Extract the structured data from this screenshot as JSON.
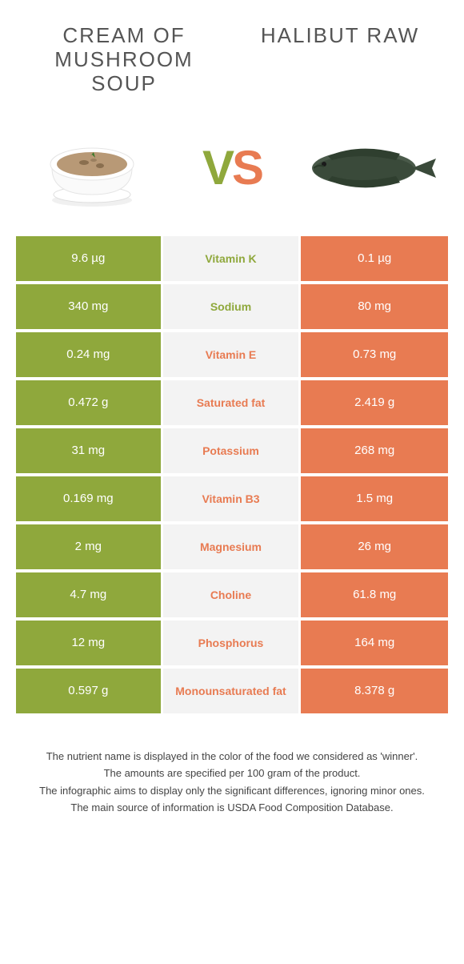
{
  "food_left": {
    "name": "Cream of Mushroom Soup",
    "color": "#8fa83c"
  },
  "food_right": {
    "name": "Halibut Raw",
    "color": "#e87b52"
  },
  "vs_label": "VS",
  "colors": {
    "left": "#8fa83c",
    "right": "#e87b52",
    "mid_bg": "#f3f3f3",
    "page_bg": "#ffffff"
  },
  "rows": [
    {
      "left": "9.6 µg",
      "nutrient": "Vitamin K",
      "right": "0.1 µg",
      "winner": "left"
    },
    {
      "left": "340 mg",
      "nutrient": "Sodium",
      "right": "80 mg",
      "winner": "left"
    },
    {
      "left": "0.24 mg",
      "nutrient": "Vitamin E",
      "right": "0.73 mg",
      "winner": "right"
    },
    {
      "left": "0.472 g",
      "nutrient": "Saturated fat",
      "right": "2.419 g",
      "winner": "right"
    },
    {
      "left": "31 mg",
      "nutrient": "Potassium",
      "right": "268 mg",
      "winner": "right"
    },
    {
      "left": "0.169 mg",
      "nutrient": "Vitamin B3",
      "right": "1.5 mg",
      "winner": "right"
    },
    {
      "left": "2 mg",
      "nutrient": "Magnesium",
      "right": "26 mg",
      "winner": "right"
    },
    {
      "left": "4.7 mg",
      "nutrient": "Choline",
      "right": "61.8 mg",
      "winner": "right"
    },
    {
      "left": "12 mg",
      "nutrient": "Phosphorus",
      "right": "164 mg",
      "winner": "right"
    },
    {
      "left": "0.597 g",
      "nutrient": "Monounsaturated fat",
      "right": "8.378 g",
      "winner": "right"
    }
  ],
  "footer": {
    "line1": "The nutrient name is displayed in the color of the food we considered as 'winner'.",
    "line2": "The amounts are specified per 100 gram of the product.",
    "line3": "The infographic aims to display only the significant differences, ignoring minor ones.",
    "line4": "The main source of information is USDA Food Composition Database."
  }
}
